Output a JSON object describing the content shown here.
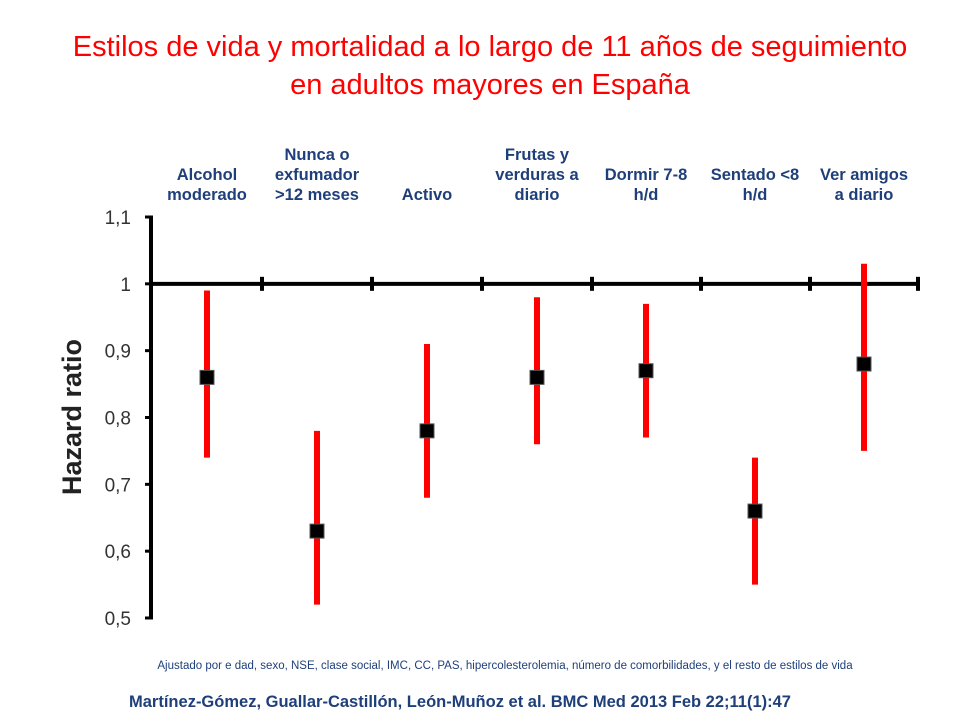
{
  "title": {
    "line1": "Estilos de vida y mortalidad a lo largo de 11 años de seguimiento",
    "line2": "en adultos mayores en España"
  },
  "chart_data": {
    "type": "forest",
    "title": "Estilos de vida y mortalidad a lo largo de 11 años de seguimiento en adultos mayores en España",
    "ylabel": "Hazard ratio",
    "xlabel": "",
    "ylim": [
      0.5,
      1.1
    ],
    "reference_line": 1,
    "y_ticks": [
      1.1,
      1,
      0.9,
      0.8,
      0.7,
      0.6,
      0.5
    ],
    "y_tick_labels": [
      "1,1",
      "1",
      "0,9",
      "0,8",
      "0,7",
      "0,6",
      "0,5"
    ],
    "categories": [
      [
        "Alcohol",
        "moderado"
      ],
      [
        "Nunca o",
        "exfumador",
        ">12 meses"
      ],
      [
        "Activo"
      ],
      [
        "Frutas y",
        "verduras a",
        "diario"
      ],
      [
        "Dormir 7-8",
        "h/d"
      ],
      [
        "Sentado <8",
        "h/d"
      ],
      [
        "Ver amigos",
        "a diario"
      ]
    ],
    "hazard_ratio": [
      0.86,
      0.63,
      0.78,
      0.86,
      0.87,
      0.66,
      0.88
    ],
    "ci_lower": [
      0.74,
      0.52,
      0.68,
      0.76,
      0.77,
      0.55,
      0.75
    ],
    "ci_upper": [
      0.99,
      0.78,
      0.91,
      0.98,
      0.97,
      0.74,
      1.03
    ],
    "colors": {
      "ci": "#ff0000",
      "point": "#000000",
      "axis": "#000000"
    }
  },
  "footnote": "Ajustado por e dad, sexo, NSE, clase social, IMC, CC, PAS, hipercolesterolemia, número de comorbilidades, y el resto de estilos de vida",
  "citation": "Martínez-Gómez, Guallar-Castillón, León-Muñoz et al. BMC Med 2013 Feb 22;11(1):47"
}
